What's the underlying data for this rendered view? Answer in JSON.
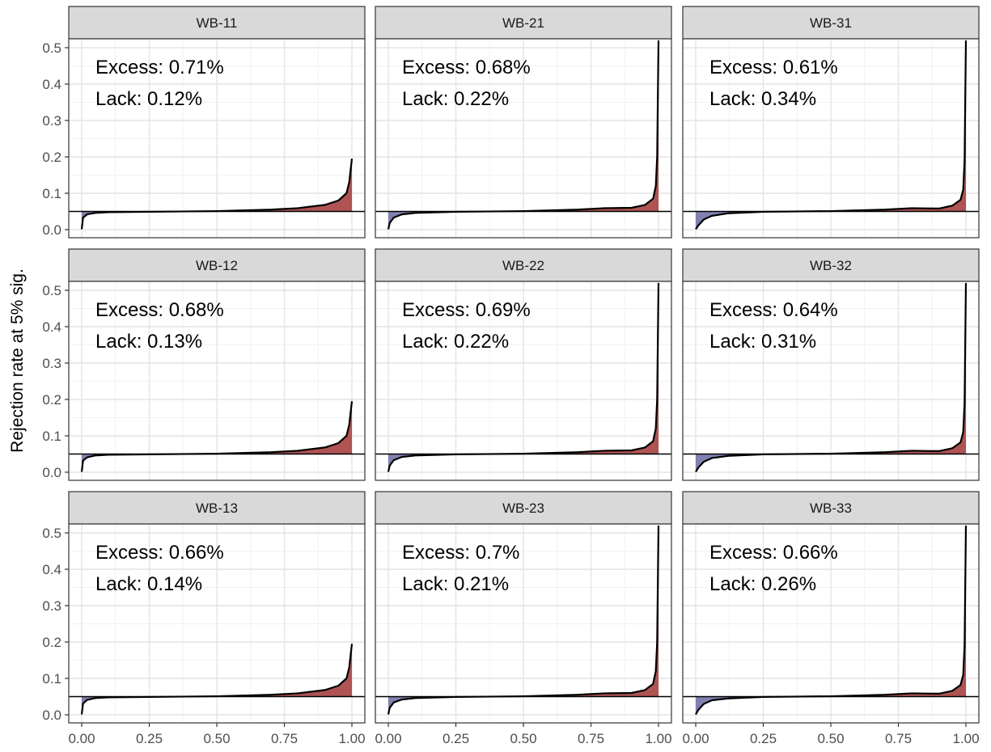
{
  "chart_data": {
    "type": "area",
    "ylabel": "Rejection rate at 5% sig.",
    "xlabel": "",
    "x_ticks": [
      "0.00",
      "0.25",
      "0.50",
      "0.75",
      "1.00"
    ],
    "y_ticks": [
      "0.0",
      "0.1",
      "0.2",
      "0.3",
      "0.4",
      "0.5"
    ],
    "xlim": [
      0,
      1
    ],
    "ylim": [
      0,
      0.52
    ],
    "reference_line": 0.05,
    "grid": true,
    "colors": {
      "excess": "#a84444",
      "lack": "#7373a8",
      "line": "#000000",
      "strip": "#d9d9d9"
    },
    "panels": [
      {
        "title": "WB-11",
        "excess_label": "Excess: 0.71%",
        "lack_label": "Lack: 0.12%",
        "min": 0.001,
        "max": 0.195,
        "tail_x": [
          0.9,
          0.95,
          0.98,
          0.99,
          1.0
        ],
        "tail_y": [
          0.068,
          0.08,
          0.1,
          0.13,
          0.195
        ],
        "head_x": [
          0.0,
          0.005,
          0.02,
          0.05,
          0.1
        ],
        "head_y": [
          0.001,
          0.033,
          0.042,
          0.046,
          0.048
        ]
      },
      {
        "title": "WB-21",
        "excess_label": "Excess: 0.68%",
        "lack_label": "Lack: 0.22%",
        "min": 0.001,
        "max": 0.52,
        "tail_x": [
          0.9,
          0.95,
          0.98,
          0.99,
          0.995,
          1.0
        ],
        "tail_y": [
          0.06,
          0.068,
          0.085,
          0.12,
          0.2,
          0.52
        ],
        "head_x": [
          0.0,
          0.005,
          0.02,
          0.05,
          0.1
        ],
        "head_y": [
          0.001,
          0.018,
          0.033,
          0.042,
          0.046
        ]
      },
      {
        "title": "WB-31",
        "excess_label": "Excess: 0.61%",
        "lack_label": "Lack: 0.34%",
        "min": 0.001,
        "max": 0.52,
        "tail_x": [
          0.9,
          0.95,
          0.98,
          0.99,
          0.995,
          1.0
        ],
        "tail_y": [
          0.058,
          0.066,
          0.082,
          0.11,
          0.19,
          0.52
        ],
        "head_x": [
          0.0,
          0.01,
          0.03,
          0.06,
          0.12
        ],
        "head_y": [
          0.001,
          0.012,
          0.028,
          0.038,
          0.045
        ]
      },
      {
        "title": "WB-12",
        "excess_label": "Excess: 0.68%",
        "lack_label": "Lack: 0.13%",
        "min": 0.001,
        "max": 0.195,
        "tail_x": [
          0.9,
          0.95,
          0.98,
          0.99,
          1.0
        ],
        "tail_y": [
          0.068,
          0.08,
          0.1,
          0.13,
          0.195
        ],
        "head_x": [
          0.0,
          0.005,
          0.02,
          0.05,
          0.1
        ],
        "head_y": [
          0.001,
          0.032,
          0.041,
          0.046,
          0.048
        ]
      },
      {
        "title": "WB-22",
        "excess_label": "Excess: 0.69%",
        "lack_label": "Lack: 0.22%",
        "min": 0.001,
        "max": 0.52,
        "tail_x": [
          0.9,
          0.95,
          0.98,
          0.99,
          0.995,
          1.0
        ],
        "tail_y": [
          0.06,
          0.068,
          0.085,
          0.12,
          0.2,
          0.52
        ],
        "head_x": [
          0.0,
          0.005,
          0.02,
          0.05,
          0.1
        ],
        "head_y": [
          0.001,
          0.018,
          0.033,
          0.042,
          0.046
        ]
      },
      {
        "title": "WB-32",
        "excess_label": "Excess: 0.64%",
        "lack_label": "Lack: 0.31%",
        "min": 0.001,
        "max": 0.52,
        "tail_x": [
          0.9,
          0.95,
          0.98,
          0.99,
          0.995,
          1.0
        ],
        "tail_y": [
          0.058,
          0.066,
          0.082,
          0.11,
          0.19,
          0.52
        ],
        "head_x": [
          0.0,
          0.01,
          0.03,
          0.06,
          0.12
        ],
        "head_y": [
          0.001,
          0.013,
          0.029,
          0.039,
          0.045
        ]
      },
      {
        "title": "WB-13",
        "excess_label": "Excess: 0.66%",
        "lack_label": "Lack: 0.14%",
        "min": 0.001,
        "max": 0.195,
        "tail_x": [
          0.9,
          0.95,
          0.98,
          0.99,
          1.0
        ],
        "tail_y": [
          0.068,
          0.08,
          0.1,
          0.13,
          0.195
        ],
        "head_x": [
          0.0,
          0.005,
          0.02,
          0.05,
          0.1
        ],
        "head_y": [
          0.001,
          0.031,
          0.041,
          0.046,
          0.048
        ]
      },
      {
        "title": "WB-23",
        "excess_label": "Excess: 0.7%",
        "lack_label": "Lack: 0.21%",
        "min": 0.001,
        "max": 0.52,
        "tail_x": [
          0.9,
          0.95,
          0.98,
          0.99,
          0.995,
          1.0
        ],
        "tail_y": [
          0.06,
          0.068,
          0.085,
          0.12,
          0.2,
          0.52
        ],
        "head_x": [
          0.0,
          0.005,
          0.02,
          0.05,
          0.1
        ],
        "head_y": [
          0.001,
          0.019,
          0.034,
          0.042,
          0.046
        ]
      },
      {
        "title": "WB-33",
        "excess_label": "Excess: 0.66%",
        "lack_label": "Lack: 0.26%",
        "min": 0.001,
        "max": 0.52,
        "tail_x": [
          0.9,
          0.95,
          0.98,
          0.99,
          0.995,
          1.0
        ],
        "tail_y": [
          0.058,
          0.066,
          0.082,
          0.11,
          0.19,
          0.52
        ],
        "head_x": [
          0.0,
          0.01,
          0.03,
          0.06,
          0.12
        ],
        "head_y": [
          0.001,
          0.014,
          0.03,
          0.04,
          0.045
        ]
      }
    ]
  }
}
